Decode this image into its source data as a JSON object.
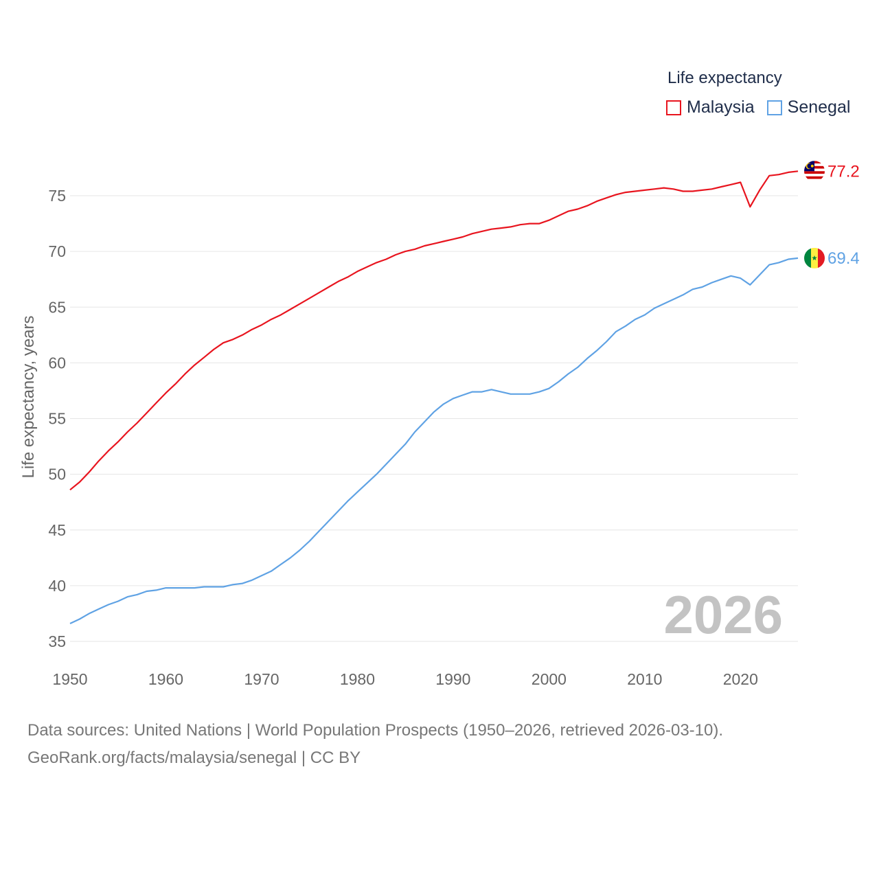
{
  "chart_data": {
    "type": "line",
    "title": "",
    "xlabel": "",
    "ylabel": "Life expectancy, years",
    "xlim": [
      1950,
      2026
    ],
    "ylim": [
      35,
      78
    ],
    "xticks": [
      1950,
      1960,
      1970,
      1980,
      1990,
      2000,
      2010,
      2020
    ],
    "yticks": [
      35,
      40,
      45,
      50,
      55,
      60,
      65,
      70,
      75
    ],
    "grid": true,
    "legend_title": "Life expectancy",
    "legend_position": "top-right",
    "current_year": "2026",
    "x": [
      1950,
      1951,
      1952,
      1953,
      1954,
      1955,
      1956,
      1957,
      1958,
      1959,
      1960,
      1961,
      1962,
      1963,
      1964,
      1965,
      1966,
      1967,
      1968,
      1969,
      1970,
      1971,
      1972,
      1973,
      1974,
      1975,
      1976,
      1977,
      1978,
      1979,
      1980,
      1981,
      1982,
      1983,
      1984,
      1985,
      1986,
      1987,
      1988,
      1989,
      1990,
      1991,
      1992,
      1993,
      1994,
      1995,
      1996,
      1997,
      1998,
      1999,
      2000,
      2001,
      2002,
      2003,
      2004,
      2005,
      2006,
      2007,
      2008,
      2009,
      2010,
      2011,
      2012,
      2013,
      2014,
      2015,
      2016,
      2017,
      2018,
      2019,
      2020,
      2021,
      2022,
      2023,
      2024,
      2025,
      2026
    ],
    "series": [
      {
        "name": "Malaysia",
        "color": "#e8141e",
        "end_label": "77.2",
        "flag": "malaysia-flag",
        "values": [
          48.6,
          49.3,
          50.2,
          51.2,
          52.1,
          52.9,
          53.8,
          54.6,
          55.5,
          56.4,
          57.3,
          58.1,
          59.0,
          59.8,
          60.5,
          61.2,
          61.8,
          62.1,
          62.5,
          63.0,
          63.4,
          63.9,
          64.3,
          64.8,
          65.3,
          65.8,
          66.3,
          66.8,
          67.3,
          67.7,
          68.2,
          68.6,
          69.0,
          69.3,
          69.7,
          70.0,
          70.2,
          70.5,
          70.7,
          70.9,
          71.1,
          71.3,
          71.6,
          71.8,
          72.0,
          72.1,
          72.2,
          72.4,
          72.5,
          72.5,
          72.8,
          73.2,
          73.6,
          73.8,
          74.1,
          74.5,
          74.8,
          75.1,
          75.3,
          75.4,
          75.5,
          75.6,
          75.7,
          75.6,
          75.4,
          75.4,
          75.5,
          75.6,
          75.8,
          76.0,
          76.2,
          74.0,
          75.5,
          76.8,
          76.9,
          77.1,
          77.2
        ]
      },
      {
        "name": "Senegal",
        "color": "#5fa2e4",
        "end_label": "69.4",
        "flag": "senegal-flag",
        "values": [
          36.6,
          37.0,
          37.5,
          37.9,
          38.3,
          38.6,
          39.0,
          39.2,
          39.5,
          39.6,
          39.8,
          39.8,
          39.8,
          39.8,
          39.9,
          39.9,
          39.9,
          40.1,
          40.2,
          40.5,
          40.9,
          41.3,
          41.9,
          42.5,
          43.2,
          44.0,
          44.9,
          45.8,
          46.7,
          47.6,
          48.4,
          49.2,
          50.0,
          50.9,
          51.8,
          52.7,
          53.8,
          54.7,
          55.6,
          56.3,
          56.8,
          57.1,
          57.4,
          57.4,
          57.6,
          57.4,
          57.2,
          57.2,
          57.2,
          57.4,
          57.7,
          58.3,
          59.0,
          59.6,
          60.4,
          61.1,
          61.9,
          62.8,
          63.3,
          63.9,
          64.3,
          64.9,
          65.3,
          65.7,
          66.1,
          66.6,
          66.8,
          67.2,
          67.5,
          67.8,
          67.6,
          67.0,
          67.9,
          68.8,
          69.0,
          69.3,
          69.4
        ]
      }
    ]
  },
  "footer": {
    "source_line": "Data sources: United Nations | World Population Prospects (1950–2026, retrieved 2026-03-10).",
    "url_line": "GeoRank.org/facts/malaysia/senegal | CC BY"
  }
}
